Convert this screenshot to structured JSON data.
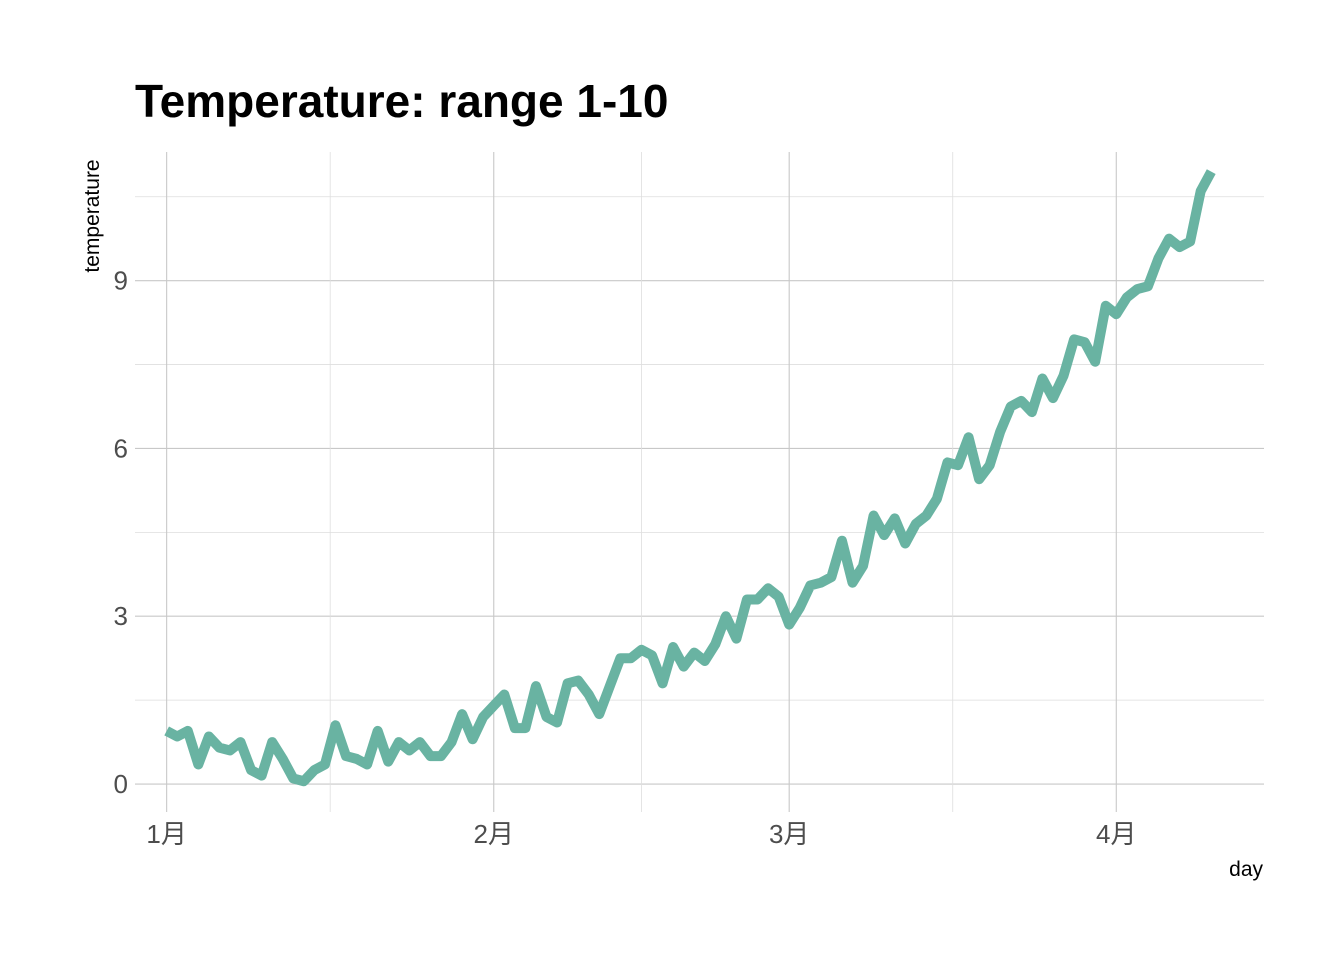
{
  "chart_data": {
    "type": "line",
    "title": "Temperature: range 1-10",
    "xlabel": "day",
    "ylabel": "temperature",
    "x_type": "date",
    "x_ticks": [
      {
        "date": "2021-01-01",
        "label": "1月"
      },
      {
        "date": "2021-02-01",
        "label": "2月"
      },
      {
        "date": "2021-03-01",
        "label": "3月"
      },
      {
        "date": "2021-04-01",
        "label": "4月"
      }
    ],
    "y_ticks": [
      0,
      3,
      6,
      9
    ],
    "xlim": [
      "2020-12-29",
      "2021-04-15"
    ],
    "ylim": [
      -0.5,
      11.3
    ],
    "grid": true,
    "line_color": "#69b3a2",
    "series": [
      {
        "x": [
          "2021-01-01",
          "2021-01-02",
          "2021-01-03",
          "2021-01-04",
          "2021-01-05",
          "2021-01-06",
          "2021-01-07",
          "2021-01-08",
          "2021-01-09",
          "2021-01-10",
          "2021-01-11",
          "2021-01-12",
          "2021-01-13",
          "2021-01-14",
          "2021-01-15",
          "2021-01-16",
          "2021-01-17",
          "2021-01-18",
          "2021-01-19",
          "2021-01-20",
          "2021-01-21",
          "2021-01-22",
          "2021-01-23",
          "2021-01-24",
          "2021-01-25",
          "2021-01-26",
          "2021-01-27",
          "2021-01-28",
          "2021-01-29",
          "2021-01-30",
          "2021-01-31",
          "2021-02-01",
          "2021-02-02",
          "2021-02-03",
          "2021-02-04",
          "2021-02-05",
          "2021-02-06",
          "2021-02-07",
          "2021-02-08",
          "2021-02-09",
          "2021-02-10",
          "2021-02-11",
          "2021-02-12",
          "2021-02-13",
          "2021-02-14",
          "2021-02-15",
          "2021-02-16",
          "2021-02-17",
          "2021-02-18",
          "2021-02-19",
          "2021-02-20",
          "2021-02-21",
          "2021-02-22",
          "2021-02-23",
          "2021-02-24",
          "2021-02-25",
          "2021-02-26",
          "2021-02-27",
          "2021-02-28",
          "2021-03-01",
          "2021-03-02",
          "2021-03-03",
          "2021-03-04",
          "2021-03-05",
          "2021-03-06",
          "2021-03-07",
          "2021-03-08",
          "2021-03-09",
          "2021-03-10",
          "2021-03-11",
          "2021-03-12",
          "2021-03-13",
          "2021-03-14",
          "2021-03-15",
          "2021-03-16",
          "2021-03-17",
          "2021-03-18",
          "2021-03-19",
          "2021-03-20",
          "2021-03-21",
          "2021-03-22",
          "2021-03-23",
          "2021-03-24",
          "2021-03-25",
          "2021-03-26",
          "2021-03-27",
          "2021-03-28",
          "2021-03-29",
          "2021-03-30",
          "2021-03-31",
          "2021-04-01",
          "2021-04-02",
          "2021-04-03",
          "2021-04-04",
          "2021-04-05",
          "2021-04-06",
          "2021-04-07",
          "2021-04-08",
          "2021-04-09",
          "2021-04-10"
        ],
        "y": [
          0.95,
          0.85,
          0.95,
          0.35,
          0.85,
          0.65,
          0.6,
          0.75,
          0.25,
          0.15,
          0.75,
          0.45,
          0.1,
          0.05,
          0.25,
          0.35,
          1.05,
          0.5,
          0.45,
          0.35,
          0.95,
          0.4,
          0.75,
          0.6,
          0.75,
          0.5,
          0.5,
          0.75,
          1.25,
          0.8,
          1.2,
          1.4,
          1.6,
          1.0,
          1.0,
          1.75,
          1.2,
          1.1,
          1.8,
          1.85,
          1.6,
          1.25,
          1.75,
          2.25,
          2.25,
          2.4,
          2.3,
          1.8,
          2.45,
          2.1,
          2.35,
          2.2,
          2.5,
          3.0,
          2.6,
          3.3,
          3.3,
          3.5,
          3.35,
          2.85,
          3.15,
          3.55,
          3.6,
          3.7,
          4.35,
          3.6,
          3.9,
          4.8,
          4.45,
          4.75,
          4.3,
          4.65,
          4.8,
          5.1,
          5.75,
          5.7,
          6.2,
          5.45,
          5.7,
          6.3,
          6.75,
          6.85,
          6.65,
          7.25,
          6.9,
          7.3,
          7.95,
          7.9,
          7.55,
          8.55,
          8.4,
          8.7,
          8.85,
          8.9,
          9.4,
          9.75,
          9.6,
          9.7,
          10.6,
          10.95
        ]
      }
    ]
  }
}
